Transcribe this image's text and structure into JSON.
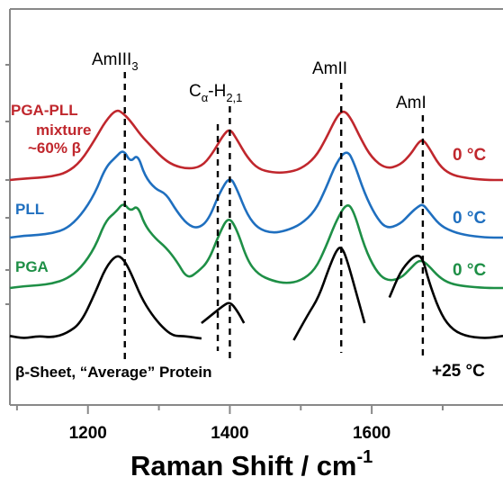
{
  "chart_data": {
    "type": "line",
    "title": "",
    "xlabel": "Raman Shift / cm",
    "xlabel_superscript": "-1",
    "ylabel": "",
    "xlim": [
      1090,
      1785
    ],
    "x_ticks": [
      1200,
      1400,
      1600
    ],
    "grid": false,
    "band_markers": [
      {
        "name": "AmIII3",
        "label": "AmIII",
        "subscript": "3",
        "x": 1252
      },
      {
        "name": "Ca-H21-a",
        "label": "",
        "x": 1383
      },
      {
        "name": "Ca-H21-b",
        "label": "",
        "x": 1400
      },
      {
        "name": "AmII",
        "label": "AmII",
        "x": 1557
      },
      {
        "name": "AmI",
        "label": "AmI",
        "x": 1672
      }
    ],
    "calpha_label": {
      "base": "C",
      "sub1": "α",
      "mid": "-H",
      "sub2": "2,1"
    },
    "series": [
      {
        "name": "PGA-PLL",
        "name_extra": [
          "mixture",
          "~60% β"
        ],
        "temperature": "0 °C",
        "color": "#c0272d",
        "x": [
          1090,
          1110,
          1130,
          1150,
          1170,
          1190,
          1210,
          1225,
          1240,
          1250,
          1260,
          1275,
          1290,
          1305,
          1320,
          1340,
          1360,
          1375,
          1390,
          1400,
          1410,
          1425,
          1440,
          1460,
          1480,
          1500,
          1520,
          1535,
          1550,
          1560,
          1570,
          1585,
          1600,
          1620,
          1640,
          1655,
          1665,
          1672,
          1680,
          1695,
          1710,
          1730,
          1760,
          1785
        ],
        "y": [
          0.0,
          0.02,
          0.03,
          0.05,
          0.1,
          0.25,
          0.55,
          0.8,
          0.96,
          0.9,
          0.8,
          0.6,
          0.45,
          0.3,
          0.2,
          0.15,
          0.18,
          0.35,
          0.6,
          0.7,
          0.55,
          0.3,
          0.15,
          0.1,
          0.1,
          0.15,
          0.3,
          0.55,
          0.85,
          0.95,
          0.85,
          0.55,
          0.3,
          0.15,
          0.2,
          0.35,
          0.5,
          0.55,
          0.45,
          0.2,
          0.08,
          0.03,
          0.0,
          0.0
        ]
      },
      {
        "name": "PLL",
        "temperature": "0 °C",
        "color": "#1f6fbf",
        "x": [
          1090,
          1110,
          1130,
          1150,
          1170,
          1190,
          1210,
          1225,
          1240,
          1250,
          1260,
          1270,
          1280,
          1295,
          1310,
          1325,
          1340,
          1355,
          1370,
          1385,
          1400,
          1410,
          1425,
          1440,
          1460,
          1480,
          1500,
          1520,
          1535,
          1550,
          1565,
          1575,
          1590,
          1605,
          1620,
          1640,
          1655,
          1665,
          1672,
          1680,
          1695,
          1710,
          1730,
          1760,
          1785
        ],
        "y": [
          0.0,
          0.02,
          0.03,
          0.05,
          0.1,
          0.25,
          0.5,
          0.8,
          0.92,
          1.0,
          0.85,
          0.95,
          0.7,
          0.55,
          0.5,
          0.3,
          0.15,
          0.1,
          0.2,
          0.5,
          0.7,
          0.55,
          0.25,
          0.1,
          0.05,
          0.08,
          0.15,
          0.3,
          0.55,
          0.85,
          1.0,
          0.85,
          0.5,
          0.25,
          0.1,
          0.15,
          0.28,
          0.35,
          0.38,
          0.3,
          0.15,
          0.08,
          0.03,
          0.0,
          0.0
        ]
      },
      {
        "name": "PGA",
        "temperature": "0 °C",
        "color": "#1e8f46",
        "x": [
          1090,
          1110,
          1130,
          1150,
          1170,
          1190,
          1210,
          1225,
          1240,
          1250,
          1260,
          1270,
          1280,
          1295,
          1310,
          1325,
          1340,
          1355,
          1370,
          1385,
          1398,
          1410,
          1425,
          1440,
          1460,
          1480,
          1500,
          1520,
          1535,
          1550,
          1565,
          1575,
          1590,
          1605,
          1620,
          1640,
          1655,
          1665,
          1672,
          1680,
          1695,
          1710,
          1730,
          1760,
          1785
        ],
        "y": [
          0.0,
          0.02,
          0.03,
          0.05,
          0.1,
          0.22,
          0.45,
          0.75,
          0.85,
          0.95,
          0.85,
          0.92,
          0.7,
          0.55,
          0.45,
          0.3,
          0.1,
          0.18,
          0.3,
          0.6,
          0.8,
          0.65,
          0.3,
          0.15,
          0.08,
          0.05,
          0.08,
          0.2,
          0.45,
          0.75,
          0.95,
          0.85,
          0.45,
          0.2,
          0.08,
          0.1,
          0.22,
          0.3,
          0.3,
          0.25,
          0.12,
          0.05,
          0.02,
          0.0,
          0.0
        ]
      },
      {
        "name": "β-Sheet, “Average” Protein",
        "temperature": "+25 °C",
        "color": "#000000",
        "segments": [
          {
            "x": [
              1090,
              1110,
              1130,
              1150,
              1170,
              1190,
              1210,
              1225,
              1240,
              1250,
              1260,
              1275,
              1290,
              1305,
              1320,
              1335,
              1350,
              1360
            ],
            "y": [
              0.05,
              0.02,
              0.05,
              0.03,
              0.08,
              0.2,
              0.55,
              0.85,
              1.0,
              0.95,
              0.8,
              0.5,
              0.3,
              0.15,
              0.05,
              0.05,
              0.03,
              0.02
            ]
          },
          {
            "x": [
              1360,
              1375,
              1390,
              1400,
              1410,
              1420
            ],
            "y": [
              0.2,
              0.3,
              0.4,
              0.45,
              0.35,
              0.2
            ]
          },
          {
            "x": [
              1490,
              1510,
              1525,
              1540,
              1550,
              1557,
              1565,
              1580,
              1590
            ],
            "y": [
              0.0,
              0.3,
              0.5,
              0.85,
              1.05,
              1.1,
              0.95,
              0.5,
              0.2
            ]
          },
          {
            "x": [
              1625,
              1640,
              1655,
              1665,
              1672,
              1680,
              1695,
              1710,
              1730,
              1760,
              1785
            ],
            "y": [
              0.5,
              0.8,
              0.95,
              1.0,
              0.95,
              0.7,
              0.35,
              0.15,
              0.05,
              0.02,
              0.05
            ]
          }
        ]
      }
    ]
  }
}
